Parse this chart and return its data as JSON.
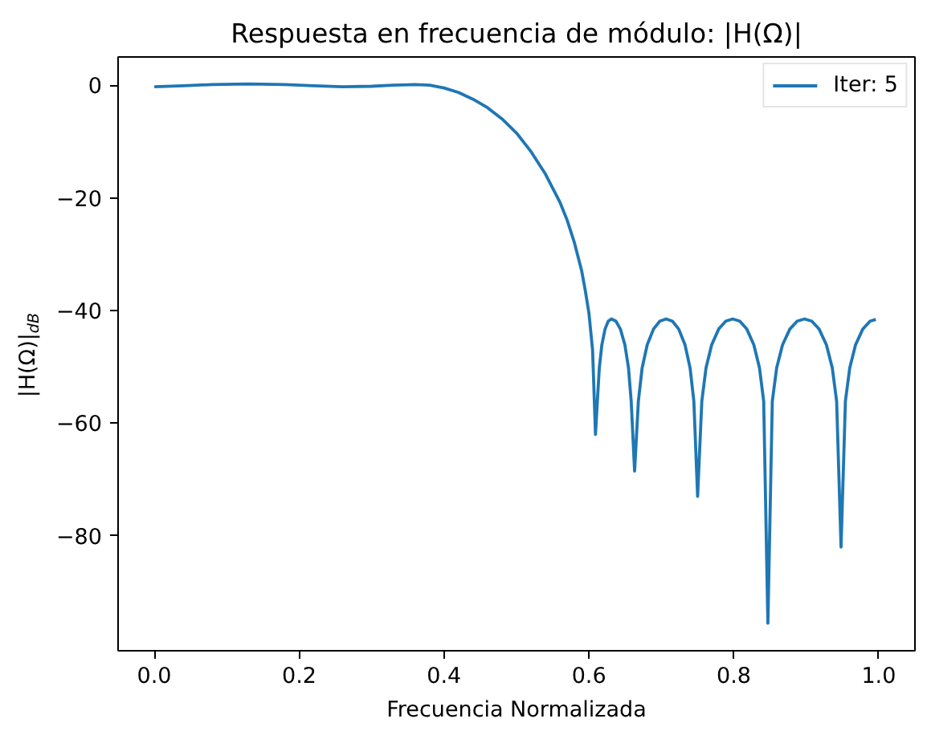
{
  "chart_data": {
    "type": "line",
    "title": "Respuesta en frecuencia de módulo: |H(Ω)|",
    "xlabel": "Frecuencia Normalizada",
    "ylabel": "|H(Ω)|$_{dB}$",
    "x": [
      0.0,
      0.04,
      0.08,
      0.13,
      0.18,
      0.22,
      0.26,
      0.3,
      0.33,
      0.36,
      0.38,
      0.4,
      0.42,
      0.44,
      0.46,
      0.48,
      0.5,
      0.52,
      0.54,
      0.56,
      0.57,
      0.58,
      0.59,
      0.595,
      0.6,
      0.605,
      0.609,
      0.6116,
      0.6143,
      0.6178,
      0.6222,
      0.6266,
      0.631,
      0.6372,
      0.6434,
      0.6496,
      0.6546,
      0.6583,
      0.663,
      0.6682,
      0.6734,
      0.6804,
      0.6891,
      0.6978,
      0.7065,
      0.7152,
      0.7239,
      0.7326,
      0.7396,
      0.7448,
      0.75,
      0.7558,
      0.7616,
      0.7694,
      0.7791,
      0.7888,
      0.7985,
      0.8082,
      0.8179,
      0.8276,
      0.8354,
      0.8412,
      0.847,
      0.8531,
      0.8591,
      0.8672,
      0.8773,
      0.8874,
      0.8975,
      0.9076,
      0.9177,
      0.9278,
      0.9359,
      0.9419,
      0.948,
      0.954,
      0.96,
      0.968,
      0.978,
      0.988,
      0.996
    ],
    "series": [
      {
        "name": "Iter: 5",
        "color": "#1f77b4",
        "values": [
          -0.3,
          -0.1,
          0.1,
          0.2,
          0.1,
          -0.1,
          -0.3,
          -0.2,
          0.0,
          0.1,
          0.0,
          -0.5,
          -1.3,
          -2.5,
          -4.0,
          -6.0,
          -8.5,
          -11.8,
          -15.8,
          -20.8,
          -24.0,
          -28.0,
          -33.0,
          -36.5,
          -40.5,
          -47,
          -62,
          -56.1,
          -50.2,
          -46.1,
          -43.3,
          -41.9,
          -41.5,
          -41.9,
          -43.3,
          -46.1,
          -50.2,
          -56.1,
          -68.5,
          -56.1,
          -50.2,
          -46.1,
          -43.3,
          -41.9,
          -41.5,
          -41.9,
          -43.3,
          -46.1,
          -50.2,
          -56.1,
          -73,
          -56.1,
          -50.2,
          -46.1,
          -43.3,
          -41.9,
          -41.5,
          -41.9,
          -43.3,
          -46.1,
          -50.2,
          -56.1,
          -95.5,
          -56.1,
          -50.2,
          -46.1,
          -43.3,
          -41.9,
          -41.5,
          -41.9,
          -43.3,
          -46.1,
          -50.2,
          -56.1,
          -82,
          -56.1,
          -50.2,
          -46.1,
          -43.3,
          -41.9,
          -41.6
        ]
      }
    ],
    "xlim": [
      -0.05,
      1.05
    ],
    "ylim": [
      -100.4,
      5.0
    ],
    "xticks": [
      {
        "value": 0.0,
        "label": "0.0"
      },
      0.2,
      0.4,
      0.6,
      0.8,
      {
        "value": 1.0,
        "label": "1.0"
      }
    ],
    "yticks": [
      {
        "value": -80,
        "label": "−80"
      },
      {
        "value": -60,
        "label": "−60"
      },
      {
        "value": -40,
        "label": "−40"
      },
      {
        "value": -20,
        "label": "−20"
      },
      0
    ],
    "grid": false,
    "legend": "top right"
  }
}
